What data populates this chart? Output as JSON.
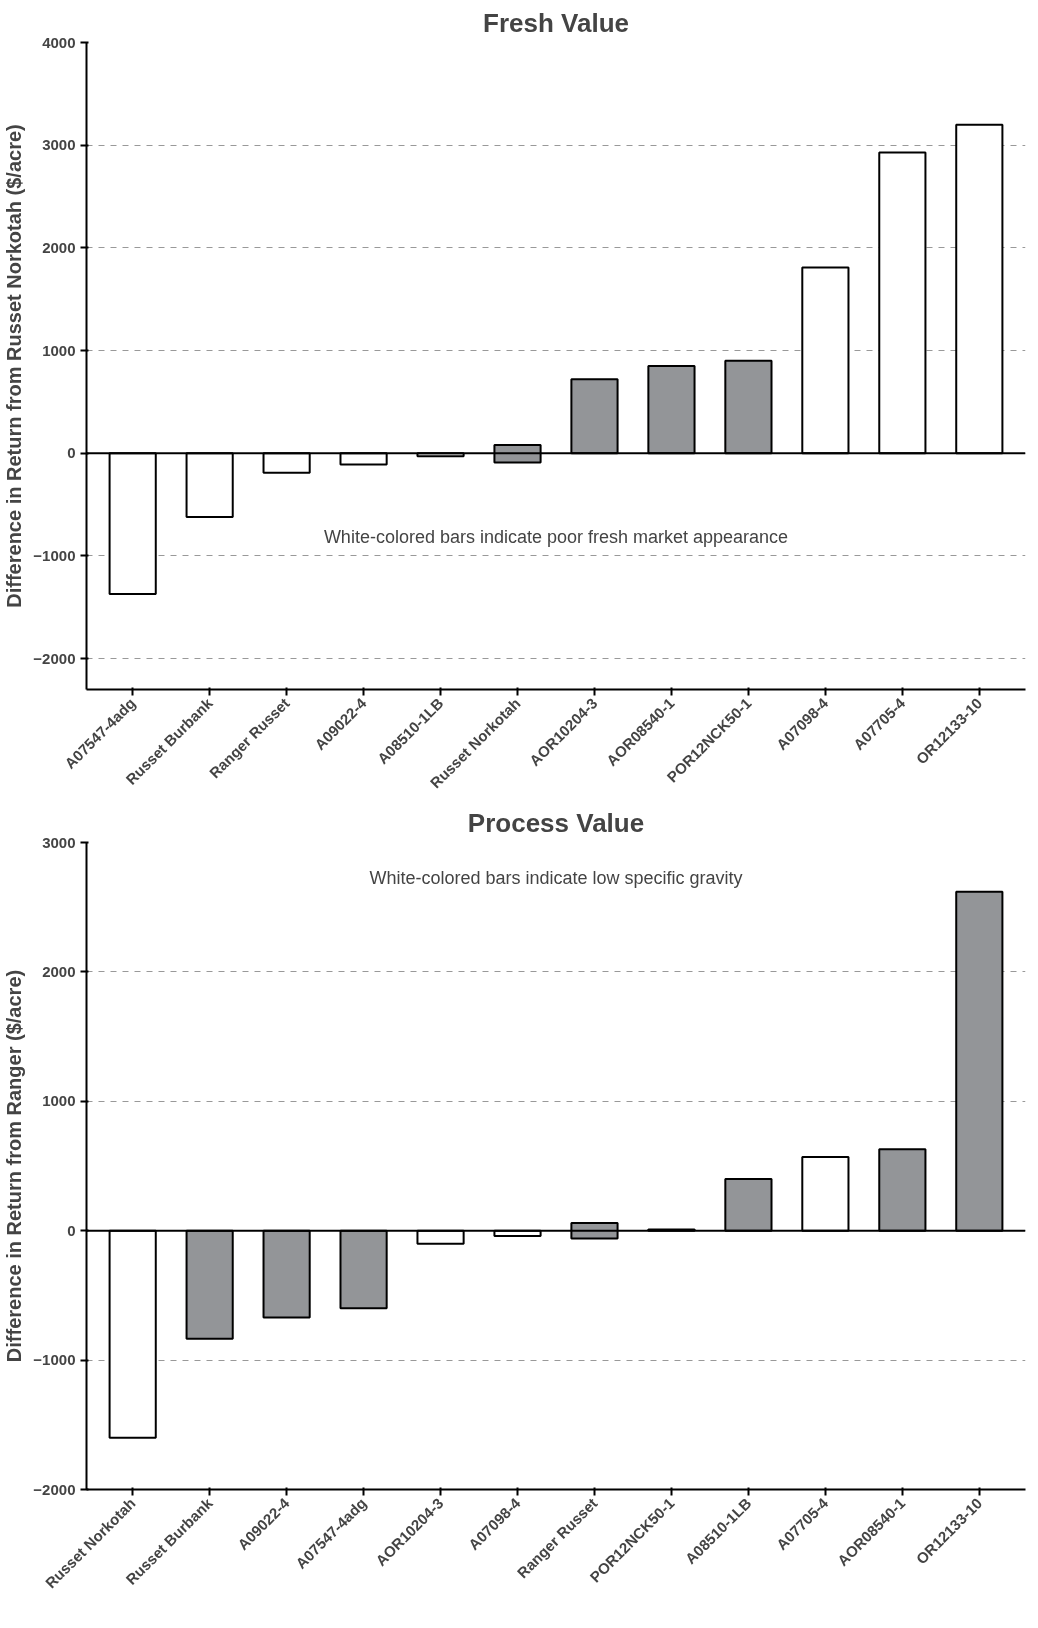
{
  "chart_data": [
    {
      "type": "bar",
      "title": "Fresh Value",
      "ylabel": "Difference in Return from Russet Norkotah ($/acre)",
      "categories": [
        "A07547-4adg",
        "Russet Burbank",
        "Ranger Russet",
        "A09022-4",
        "A08510-1LB",
        "Russet Norkotah",
        "AOR10204-3",
        "AOR08540-1",
        "POR12NCK50-1",
        "A07098-4",
        "A07705-4",
        "OR12133-10"
      ],
      "values": [
        -1370,
        -620,
        -190,
        -110,
        -30,
        170,
        720,
        850,
        900,
        1810,
        2930,
        3200
      ],
      "base": [
        0,
        0,
        0,
        0,
        0,
        -90,
        0,
        0,
        0,
        0,
        0,
        0
      ],
      "colors": [
        "#ffffff",
        "#ffffff",
        "#ffffff",
        "#ffffff",
        "#ffffff",
        "#939598",
        "#939598",
        "#939598",
        "#939598",
        "#ffffff",
        "#ffffff",
        "#ffffff"
      ],
      "ylim": [
        -2300,
        4000
      ],
      "yticks": [
        -2000,
        -1000,
        0,
        1000,
        2000,
        3000,
        4000
      ],
      "grid": "y",
      "ref_lines": [
        {
          "axis": "y",
          "value": 0,
          "color": "#000000",
          "line_style": "solid"
        }
      ],
      "annotations": [
        "White-colored bars indicate poor fresh market appearance"
      ]
    },
    {
      "type": "bar",
      "title": "Process Value",
      "ylabel": "Difference in Return from Ranger ($/acre)",
      "categories": [
        "Russet Norkotah",
        "Russet Burbank",
        "A09022-4",
        "A07547-4adg",
        "AOR10204-3",
        "A07098-4",
        "Ranger Russet",
        "POR12NCK50-1",
        "A08510-1LB",
        "A07705-4",
        "AOR08540-1",
        "OR12133-10"
      ],
      "values": [
        -1600,
        -835,
        -670,
        -600,
        -100,
        -40,
        120,
        10,
        400,
        570,
        630,
        2620
      ],
      "base": [
        0,
        0,
        0,
        0,
        0,
        0,
        -60,
        0,
        0,
        0,
        0,
        0
      ],
      "colors": [
        "#ffffff",
        "#939598",
        "#939598",
        "#939598",
        "#ffffff",
        "#ffffff",
        "#939598",
        "#ffffff",
        "#939598",
        "#ffffff",
        "#939598",
        "#939598"
      ],
      "ylim": [
        -2000,
        3000
      ],
      "yticks": [
        -2000,
        -1000,
        0,
        1000,
        2000,
        3000
      ],
      "grid": "y",
      "ref_lines": [
        {
          "axis": "y",
          "value": 0,
          "color": "#000000",
          "line_style": "solid"
        }
      ],
      "annotations": [
        "White-colored bars indicate low specific gravity"
      ]
    }
  ]
}
